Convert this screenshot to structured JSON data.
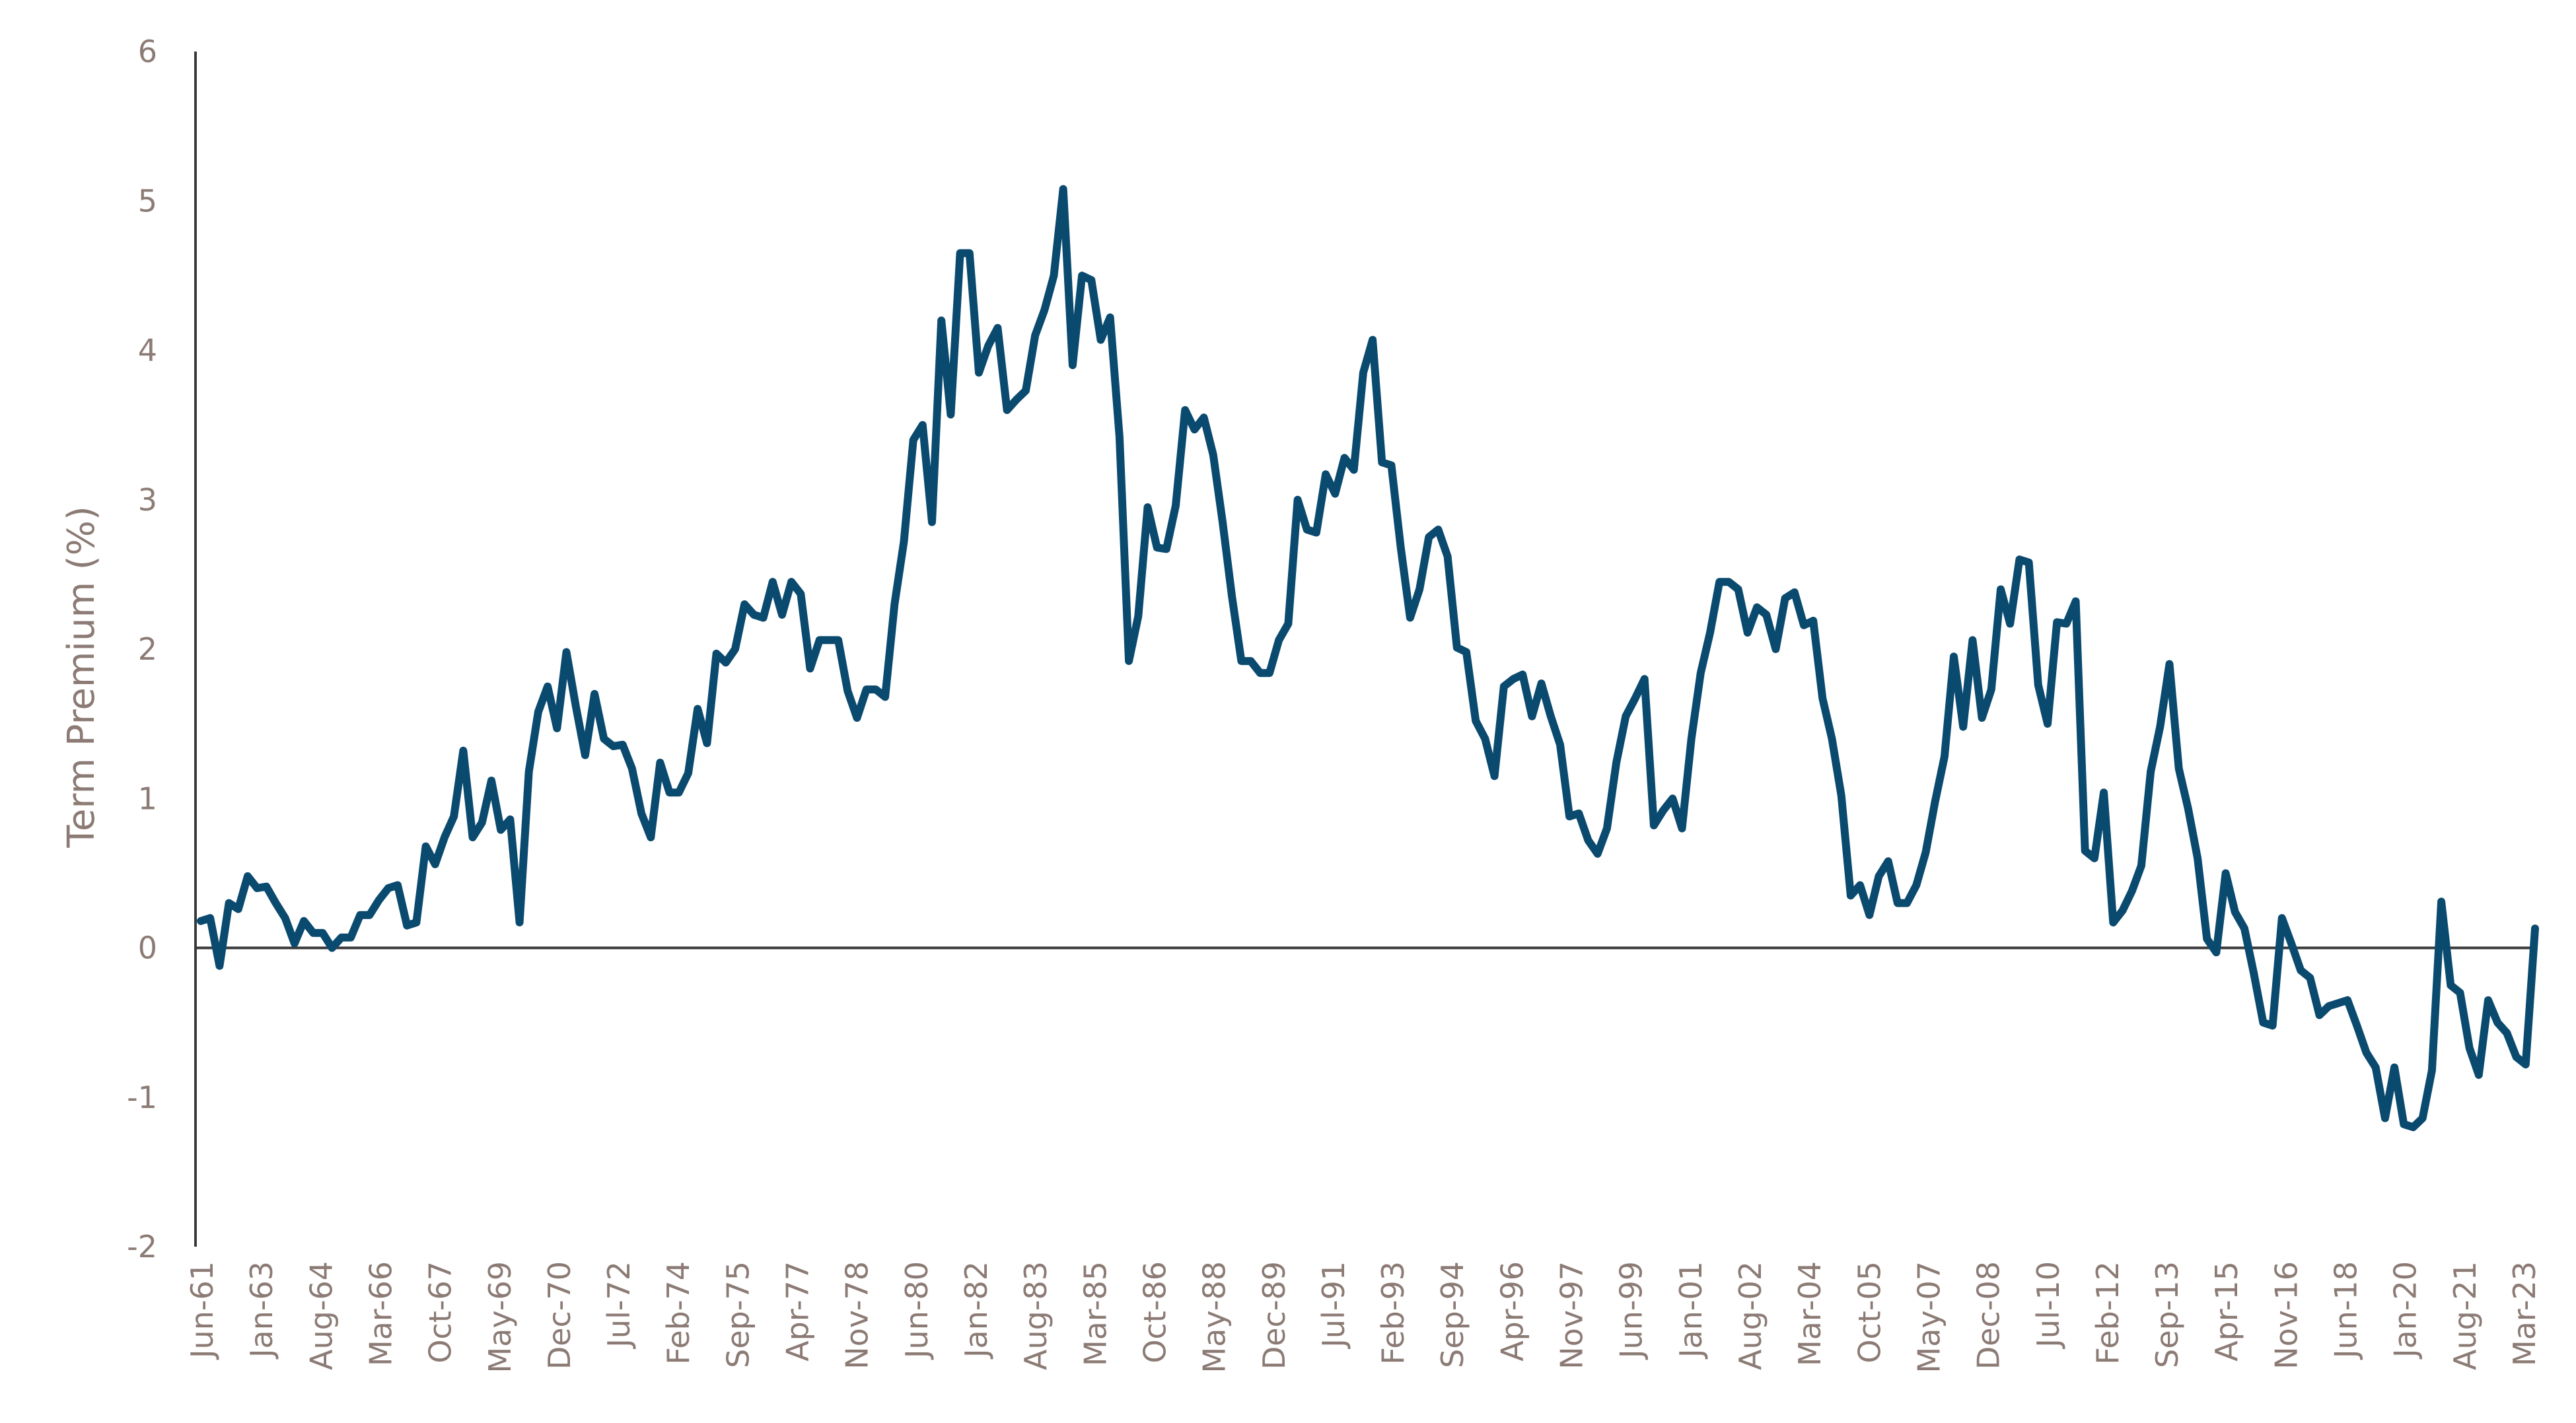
{
  "chart_data": {
    "type": "line",
    "title": "",
    "xlabel": "",
    "ylabel": "Term Premium (%)",
    "ylim": [
      -2,
      6
    ],
    "yticks": [
      "6",
      "5",
      "4",
      "3",
      "2",
      "1",
      "0",
      "-1",
      "-2"
    ],
    "x_tick_labels": [
      "Jun-61",
      "Jan-63",
      "Aug-64",
      "Mar-66",
      "Oct-67",
      "May-69",
      "Dec-70",
      "Jul-72",
      "Feb-74",
      "Sep-75",
      "Apr-77",
      "Nov-78",
      "Jun-80",
      "Jan-82",
      "Aug-83",
      "Mar-85",
      "Oct-86",
      "May-88",
      "Dec-89",
      "Jul-91",
      "Feb-93",
      "Sep-94",
      "Apr-96",
      "Nov-97",
      "Jun-99",
      "Jan-01",
      "Aug-02",
      "Mar-04",
      "Oct-05",
      "May-07",
      "Dec-08",
      "Jul-10",
      "Feb-12",
      "Sep-13",
      "Apr-15",
      "Nov-16",
      "Jun-18",
      "Jan-20",
      "Aug-21",
      "Mar-23"
    ],
    "x_start": "Jun-61",
    "x_end": "Sep-23",
    "series": [
      {
        "color": "#0b4a6f",
        "values": [
          0.18,
          0.2,
          -0.12,
          0.3,
          0.26,
          0.48,
          0.4,
          0.41,
          0.3,
          0.2,
          0.03,
          0.18,
          0.1,
          0.1,
          0.0,
          0.07,
          0.07,
          0.22,
          0.22,
          0.32,
          0.4,
          0.42,
          0.15,
          0.17,
          0.68,
          0.56,
          0.74,
          0.88,
          1.32,
          0.74,
          0.84,
          1.12,
          0.79,
          0.86,
          0.17,
          1.18,
          1.58,
          1.75,
          1.47,
          1.98,
          1.62,
          1.29,
          1.7,
          1.4,
          1.35,
          1.36,
          1.2,
          0.9,
          0.74,
          1.24,
          1.04,
          1.04,
          1.17,
          1.6,
          1.37,
          1.97,
          1.91,
          2.0,
          2.3,
          2.23,
          2.21,
          2.45,
          2.23,
          2.45,
          2.37,
          1.87,
          2.06,
          2.06,
          2.06,
          1.72,
          1.54,
          1.73,
          1.73,
          1.68,
          2.3,
          2.72,
          3.4,
          3.5,
          2.85,
          4.2,
          3.57,
          4.65,
          4.65,
          3.85,
          4.03,
          4.15,
          3.6,
          3.67,
          3.73,
          4.1,
          4.27,
          4.5,
          5.08,
          3.9,
          4.5,
          4.47,
          4.07,
          4.22,
          3.42,
          1.92,
          2.22,
          2.95,
          2.68,
          2.67,
          2.96,
          3.6,
          3.47,
          3.55,
          3.3,
          2.85,
          2.35,
          1.92,
          1.92,
          1.84,
          1.84,
          2.06,
          2.17,
          3.0,
          2.8,
          2.78,
          3.17,
          3.04,
          3.28,
          3.2,
          3.85,
          4.07,
          3.25,
          3.23,
          2.68,
          2.21,
          2.4,
          2.75,
          2.8,
          2.62,
          2.01,
          1.98,
          1.52,
          1.4,
          1.15,
          1.75,
          1.8,
          1.83,
          1.55,
          1.77,
          1.55,
          1.36,
          0.88,
          0.9,
          0.72,
          0.63,
          0.8,
          1.24,
          1.55,
          1.67,
          1.8,
          0.82,
          0.92,
          1.0,
          0.8,
          1.4,
          1.84,
          2.11,
          2.45,
          2.45,
          2.4,
          2.11,
          2.28,
          2.23,
          2.0,
          2.34,
          2.38,
          2.16,
          2.19,
          1.67,
          1.4,
          1.02,
          0.35,
          0.42,
          0.22,
          0.48,
          0.58,
          0.3,
          0.3,
          0.42,
          0.64,
          0.98,
          1.28,
          1.95,
          1.48,
          2.06,
          1.54,
          1.73,
          2.4,
          2.17,
          2.6,
          2.58,
          1.76,
          1.5,
          2.18,
          2.17,
          2.32,
          0.65,
          0.6,
          1.04,
          0.17,
          0.25,
          0.38,
          0.55,
          1.18,
          1.48,
          1.9,
          1.2,
          0.93,
          0.6,
          0.06,
          -0.03,
          0.5,
          0.24,
          0.13,
          -0.17,
          -0.5,
          -0.52,
          0.2,
          0.03,
          -0.15,
          -0.2,
          -0.45,
          -0.39,
          -0.37,
          -0.35,
          -0.52,
          -0.7,
          -0.8,
          -1.14,
          -0.8,
          -1.18,
          -1.2,
          -1.14,
          -0.82,
          0.31,
          -0.25,
          -0.3,
          -0.67,
          -0.85,
          -0.35,
          -0.5,
          -0.57,
          -0.73,
          -0.78,
          0.13
        ]
      }
    ]
  }
}
